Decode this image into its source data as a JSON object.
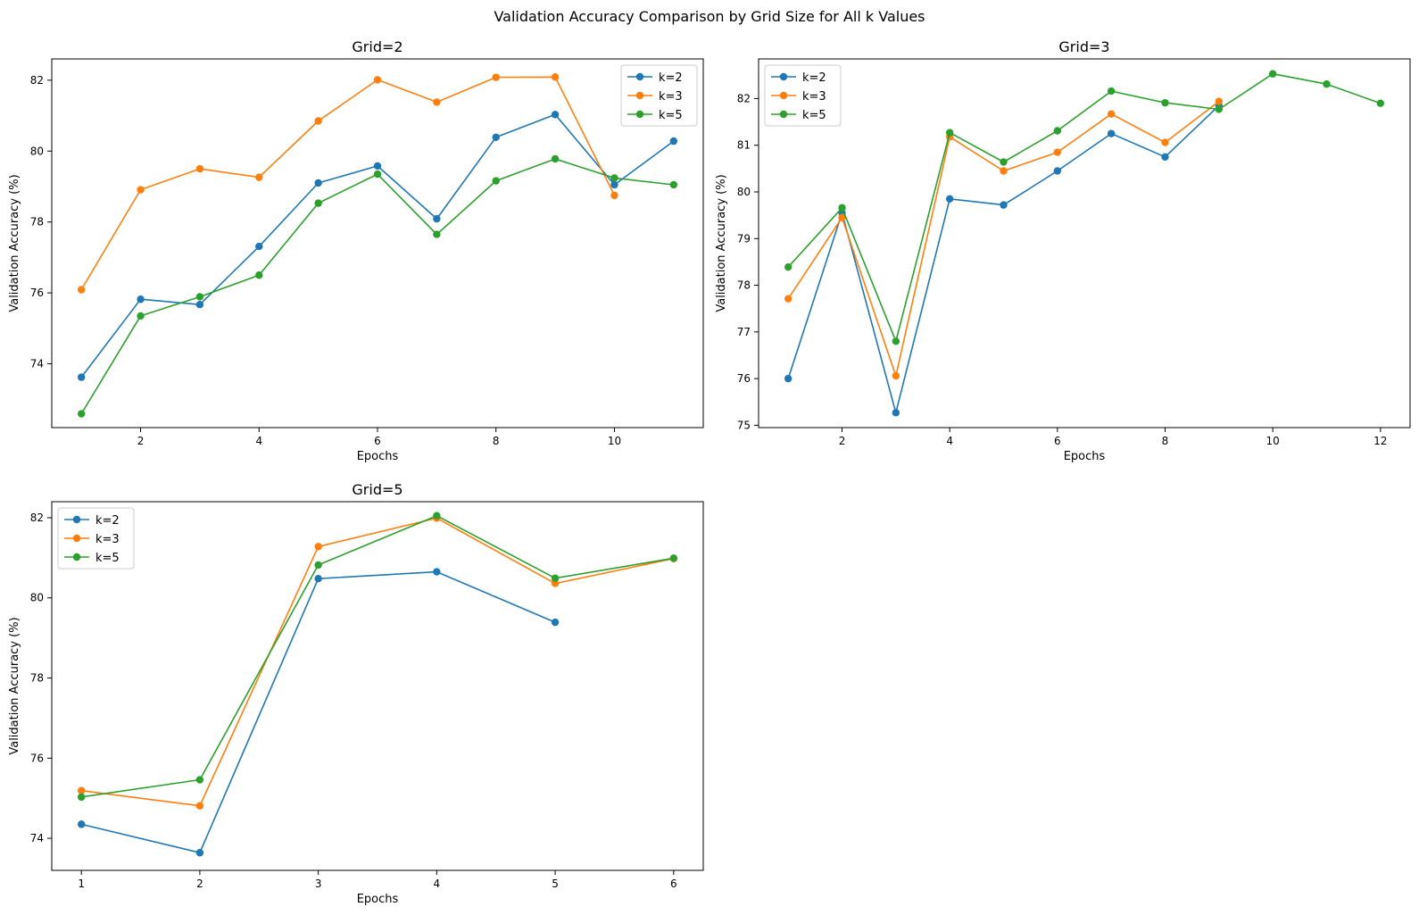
{
  "figure_title": "Validation Accuracy Comparison by Grid Size for All k Values",
  "colors": {
    "k2": "#1f77b4",
    "k3": "#ff7f0e",
    "k5": "#2ca02c"
  },
  "chart_data": [
    {
      "type": "line",
      "title": "Grid=2",
      "xlabel": "Epochs",
      "ylabel": "Validation Accuracy (%)",
      "xlim": [
        0.5,
        11.5
      ],
      "ylim": [
        72.2,
        82.6
      ],
      "xticks": [
        2,
        4,
        6,
        8,
        10
      ],
      "yticks": [
        74,
        76,
        78,
        80,
        82
      ],
      "legend_position": "upper right",
      "series": [
        {
          "name": "k=2",
          "color": "#1f77b4",
          "x": [
            1,
            2,
            3,
            4,
            5,
            6,
            7,
            8,
            9,
            10,
            11
          ],
          "y": [
            73.62,
            75.82,
            75.67,
            77.31,
            79.1,
            79.58,
            78.09,
            80.39,
            81.03,
            79.05,
            80.28
          ]
        },
        {
          "name": "k=3",
          "color": "#ff7f0e",
          "x": [
            1,
            2,
            3,
            4,
            5,
            6,
            7,
            8,
            9,
            10
          ],
          "y": [
            76.09,
            78.91,
            79.5,
            79.26,
            80.85,
            82.01,
            81.38,
            82.08,
            82.09,
            78.75
          ]
        },
        {
          "name": "k=5",
          "color": "#2ca02c",
          "x": [
            1,
            2,
            3,
            4,
            5,
            6,
            7,
            8,
            9,
            10,
            11
          ],
          "y": [
            72.59,
            75.35,
            75.89,
            76.5,
            78.53,
            79.35,
            77.65,
            79.16,
            79.78,
            79.24,
            79.05
          ]
        }
      ]
    },
    {
      "type": "line",
      "title": "Grid=3",
      "xlabel": "Epochs",
      "ylabel": "Validation Accuracy (%)",
      "xlim": [
        0.45,
        12.55
      ],
      "ylim": [
        74.95,
        82.85
      ],
      "xticks": [
        2,
        4,
        6,
        8,
        10,
        12
      ],
      "yticks": [
        75,
        76,
        77,
        78,
        79,
        80,
        81,
        82
      ],
      "legend_position": "upper left",
      "series": [
        {
          "name": "k=2",
          "color": "#1f77b4",
          "x": [
            1,
            2,
            3,
            4,
            5,
            6,
            7,
            8,
            9
          ],
          "y": [
            76.0,
            79.55,
            75.27,
            79.85,
            79.72,
            80.45,
            81.25,
            80.75,
            81.85
          ]
        },
        {
          "name": "k=3",
          "color": "#ff7f0e",
          "x": [
            1,
            2,
            3,
            4,
            5,
            6,
            7,
            8,
            9
          ],
          "y": [
            77.71,
            79.45,
            76.06,
            81.18,
            80.45,
            80.85,
            81.67,
            81.06,
            81.94
          ]
        },
        {
          "name": "k=5",
          "color": "#2ca02c",
          "x": [
            1,
            2,
            3,
            4,
            5,
            6,
            7,
            8,
            9,
            10,
            11,
            12
          ],
          "y": [
            78.39,
            79.66,
            76.8,
            81.27,
            80.64,
            81.31,
            82.16,
            81.91,
            81.77,
            82.53,
            82.31,
            81.9
          ]
        }
      ]
    },
    {
      "type": "line",
      "title": "Grid=5",
      "xlabel": "Epochs",
      "ylabel": "Validation Accuracy (%)",
      "xlim": [
        0.75,
        6.25
      ],
      "ylim": [
        73.2,
        82.4
      ],
      "xticks": [
        1,
        2,
        3,
        4,
        5,
        6
      ],
      "yticks": [
        74,
        76,
        78,
        80,
        82
      ],
      "legend_position": "upper left",
      "series": [
        {
          "name": "k=2",
          "color": "#1f77b4",
          "x": [
            1,
            2,
            3,
            4,
            5
          ],
          "y": [
            74.35,
            73.64,
            80.48,
            80.65,
            79.39
          ]
        },
        {
          "name": "k=3",
          "color": "#ff7f0e",
          "x": [
            1,
            2,
            3,
            4,
            5,
            6
          ],
          "y": [
            75.19,
            74.81,
            81.28,
            81.99,
            80.36,
            80.98
          ]
        },
        {
          "name": "k=5",
          "color": "#2ca02c",
          "x": [
            1,
            2,
            3,
            4,
            5,
            6
          ],
          "y": [
            75.03,
            75.46,
            80.82,
            82.05,
            80.49,
            80.99
          ]
        }
      ]
    }
  ]
}
